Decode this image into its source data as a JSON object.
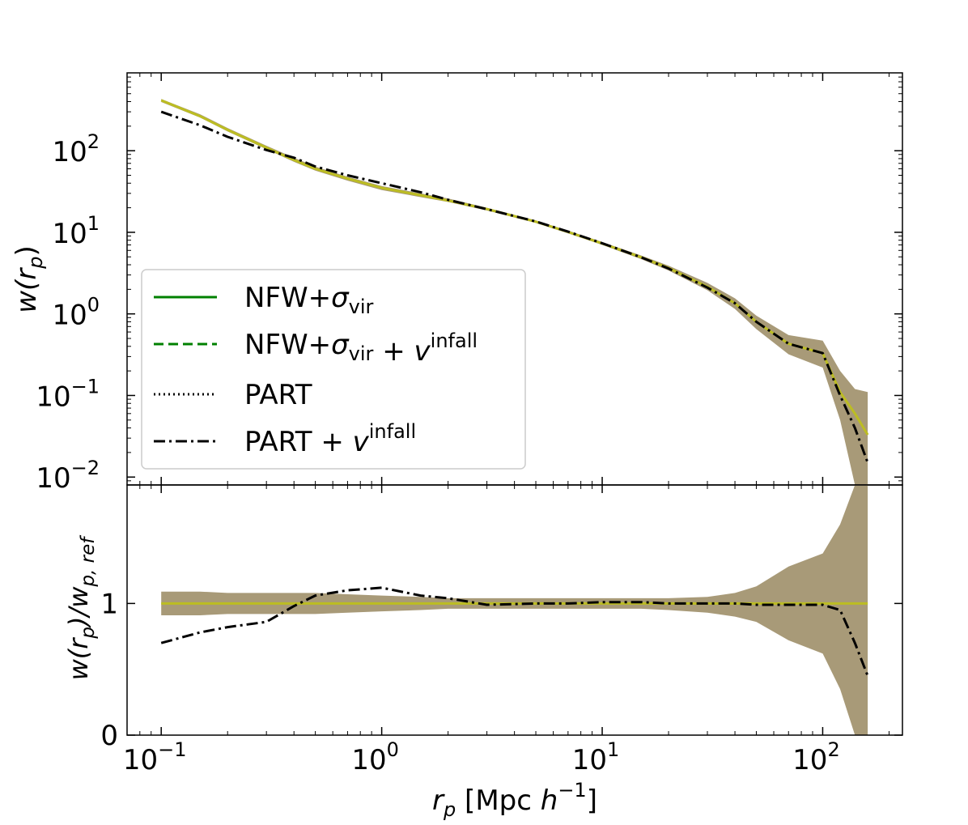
{
  "chart_data": [
    {
      "type": "line",
      "panel": "top",
      "yscale": "log",
      "xscale": "log",
      "xlim": [
        0.07,
        230
      ],
      "ylim": [
        0.008,
        900
      ],
      "ylabel_parts": {
        "base": "w(r",
        "sub": "p",
        "close": ")"
      },
      "yticks": [
        {
          "value": 0.01,
          "base": "10",
          "exp": "−2"
        },
        {
          "value": 0.1,
          "base": "10",
          "exp": "−1"
        },
        {
          "value": 1,
          "base": "10",
          "exp": "0"
        },
        {
          "value": 10,
          "base": "10",
          "exp": "1"
        },
        {
          "value": 100,
          "base": "10",
          "exp": "2"
        }
      ],
      "legend": {
        "placement": "lower-left",
        "entries": [
          {
            "style": "solid",
            "color": "#008000",
            "label": "NFW+",
            "sym": "σ",
            "sub": "vir",
            "suffix": "",
            "sup": ""
          },
          {
            "style": "dashed",
            "color": "#008000",
            "label": "NFW+",
            "sym": "σ",
            "sub": "vir",
            "suffix": " + v",
            "sup": "infall"
          },
          {
            "style": "dotted",
            "color": "#000000",
            "label": "PART",
            "sym": "",
            "sub": "",
            "suffix": "",
            "sup": ""
          },
          {
            "style": "dashdot",
            "color": "#000000",
            "label": "PART",
            "sym": "",
            "sub": "",
            "suffix": " + v",
            "sup": "infall"
          }
        ]
      },
      "x": [
        0.1,
        0.15,
        0.2,
        0.3,
        0.4,
        0.5,
        0.7,
        1.0,
        1.5,
        2.0,
        3.0,
        5.0,
        7.0,
        10,
        15,
        20,
        30,
        40,
        50,
        70,
        100,
        120,
        140,
        160
      ],
      "band": {
        "color": "#a89a78",
        "upper": [
          430,
          280,
          190,
          115,
          82,
          64,
          48,
          37,
          30,
          26,
          20,
          14,
          10.5,
          7.6,
          5.2,
          3.9,
          2.4,
          1.55,
          0.95,
          0.55,
          0.47,
          0.2,
          0.12,
          0.11
        ],
        "lower": [
          395,
          255,
          172,
          104,
          73,
          57,
          43,
          33,
          27,
          23.5,
          18.5,
          13,
          9.7,
          7.0,
          4.7,
          3.4,
          1.95,
          1.15,
          0.65,
          0.32,
          0.22,
          0.05,
          0.008,
          0.008
        ]
      },
      "series": [
        {
          "style": "solid",
          "color": "#bcbd22",
          "y": [
            415,
            265,
            180,
            109,
            77,
            60,
            45.5,
            35,
            28.5,
            24.5,
            19.3,
            13.5,
            10.1,
            7.3,
            4.95,
            3.65,
            2.15,
            1.35,
            0.8,
            0.43,
            0.33,
            0.11,
            0.06,
            0.033
          ]
        },
        {
          "style": "dashdot",
          "color": "#000000",
          "y": [
            300,
            205,
            148,
            102,
            82,
            64,
            50,
            40,
            31,
            25,
            19.2,
            13.6,
            10.2,
            7.35,
            4.95,
            3.6,
            2.1,
            1.35,
            0.8,
            0.43,
            0.33,
            0.1,
            0.04,
            0.015
          ]
        }
      ]
    },
    {
      "type": "line",
      "panel": "bottom",
      "xscale": "log",
      "yscale": "linear",
      "xlim": [
        0.07,
        230
      ],
      "ylim": [
        0,
        1.9
      ],
      "xlabel_parts": {
        "base": "r",
        "sub": "p",
        "text": " [Mpc ",
        "h": "h",
        "exp": "−1",
        "close": "]"
      },
      "ylabel_parts": {
        "base": "w(r",
        "sub1": "p",
        "mid": ")/w",
        "sub2": "p, ref"
      },
      "xticks": [
        {
          "value": 0.1,
          "base": "10",
          "exp": "−1"
        },
        {
          "value": 1,
          "base": "10",
          "exp": "0"
        },
        {
          "value": 10,
          "base": "10",
          "exp": "1"
        },
        {
          "value": 100,
          "base": "10",
          "exp": "2"
        }
      ],
      "yticks": [
        {
          "value": 0,
          "label": "0"
        },
        {
          "value": 1,
          "label": "1"
        }
      ],
      "x": [
        0.1,
        0.15,
        0.2,
        0.3,
        0.4,
        0.5,
        0.7,
        1.0,
        1.5,
        2.0,
        3.0,
        5.0,
        7.0,
        10,
        15,
        20,
        30,
        40,
        50,
        70,
        100,
        120,
        140,
        160
      ],
      "band": {
        "color": "#a89a78",
        "upper": [
          1.09,
          1.09,
          1.08,
          1.08,
          1.08,
          1.08,
          1.07,
          1.06,
          1.05,
          1.04,
          1.04,
          1.04,
          1.04,
          1.04,
          1.04,
          1.04,
          1.05,
          1.08,
          1.13,
          1.28,
          1.38,
          1.6,
          1.9,
          1.9
        ],
        "lower": [
          0.91,
          0.91,
          0.92,
          0.92,
          0.92,
          0.92,
          0.93,
          0.94,
          0.95,
          0.96,
          0.96,
          0.96,
          0.96,
          0.96,
          0.96,
          0.95,
          0.93,
          0.9,
          0.86,
          0.72,
          0.62,
          0.35,
          0.0,
          0.0
        ]
      },
      "series": [
        {
          "style": "solid",
          "color": "#bcbd22",
          "y": [
            1,
            1,
            1,
            1,
            1,
            1,
            1,
            1,
            1,
            1,
            1,
            1,
            1,
            1,
            1,
            1,
            1,
            1,
            1,
            1,
            1,
            1,
            1,
            1
          ]
        },
        {
          "style": "dashdot",
          "color": "#000000",
          "y": [
            0.7,
            0.78,
            0.82,
            0.86,
            0.98,
            1.06,
            1.1,
            1.12,
            1.06,
            1.04,
            0.99,
            1.0,
            1.0,
            1.01,
            1.01,
            1.0,
            1.0,
            1.0,
            0.99,
            0.99,
            0.99,
            0.95,
            0.7,
            0.45
          ]
        }
      ]
    }
  ]
}
